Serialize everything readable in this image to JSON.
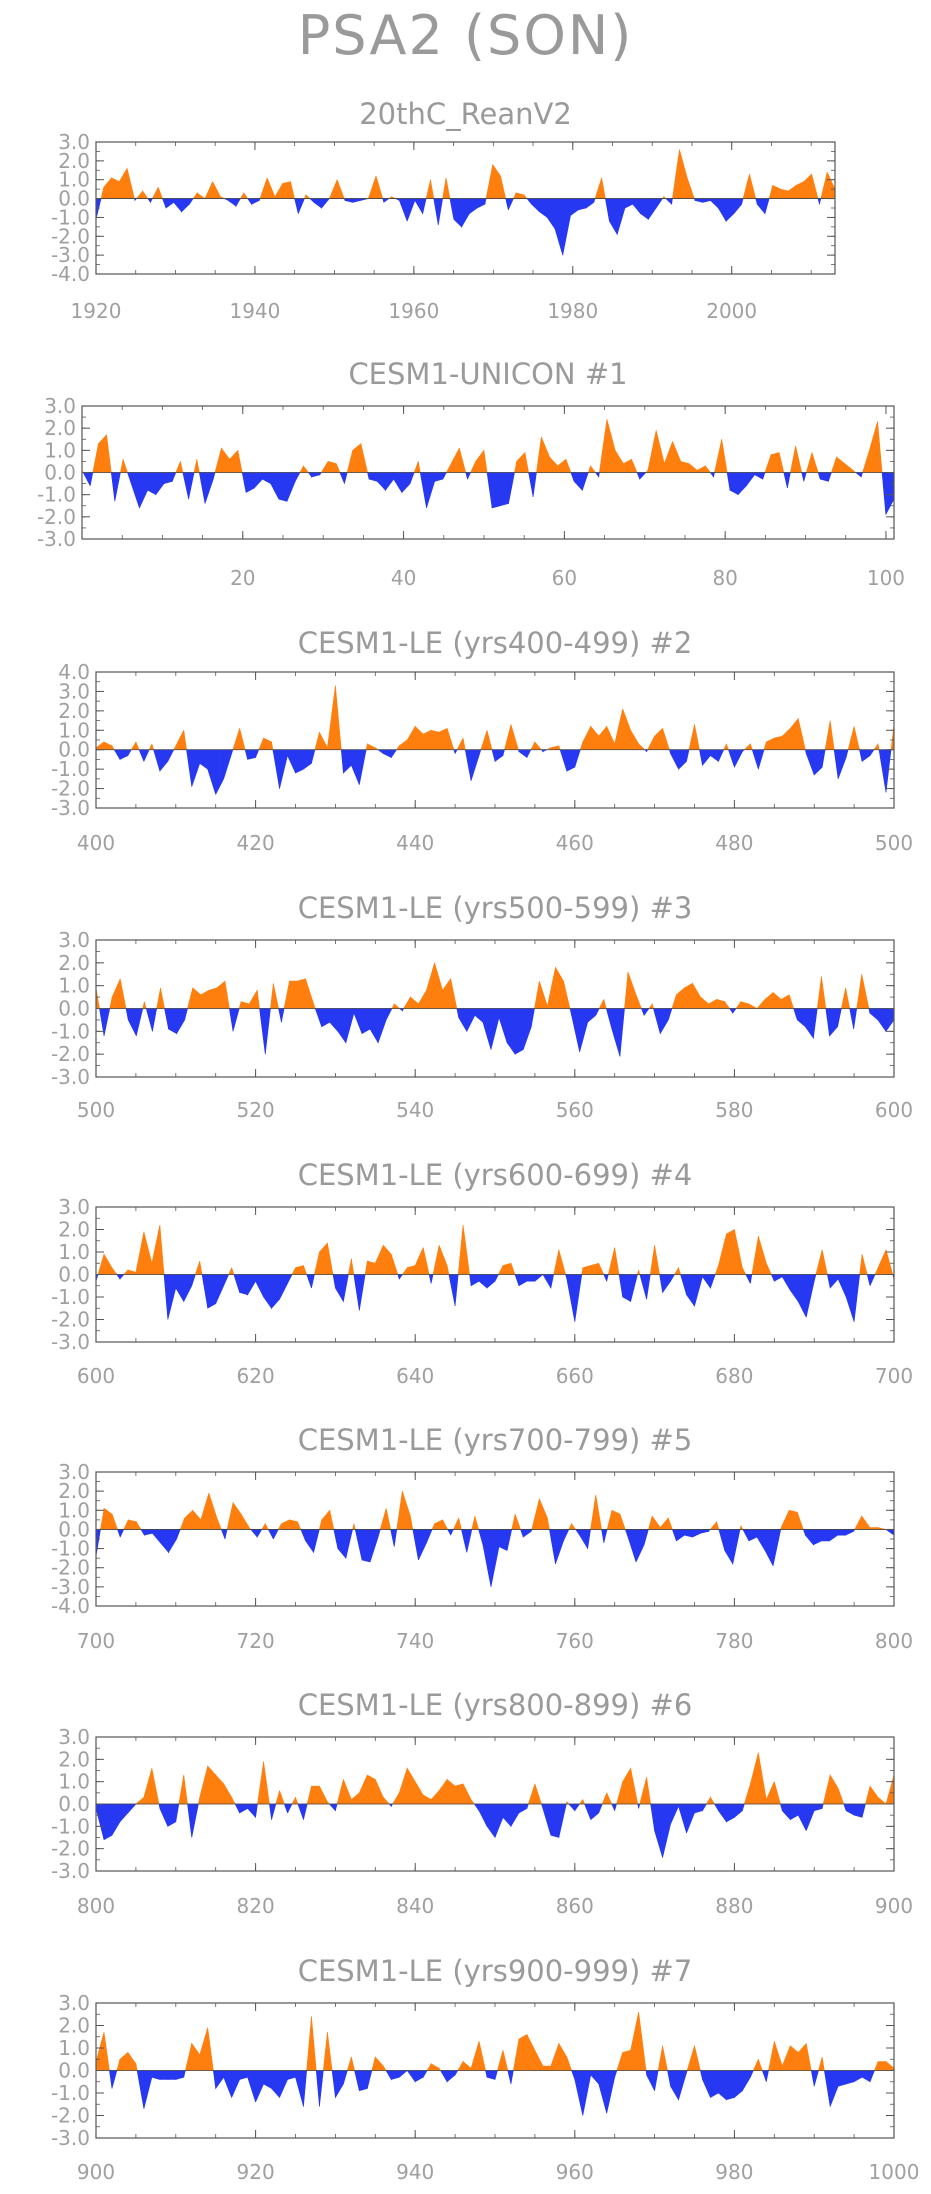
{
  "figure": {
    "title": "PSA2 (SON)"
  },
  "colors": {
    "positive": "#ff7f0e",
    "negative": "#2638f2",
    "axis": "#555555",
    "text": "#9a9a9a"
  },
  "chart_data": [
    {
      "type": "area",
      "title": "20thC_ReanV2",
      "x_range": [
        1920,
        2013
      ],
      "ylim": [
        -4.0,
        3.0
      ],
      "y_ticks": [
        "3.0",
        "2.0",
        "1.0",
        "0.0",
        "-1.0",
        "-2.0",
        "-3.0",
        "-4.0"
      ],
      "x_ticks": [
        "1920",
        "1940",
        "1960",
        "1980",
        "2000"
      ],
      "values": [
        -1.1,
        0.6,
        1.1,
        0.9,
        1.6,
        -0.1,
        0.4,
        -0.2,
        0.6,
        -0.5,
        -0.2,
        -0.7,
        -0.3,
        0.3,
        0.0,
        0.9,
        0.1,
        -0.1,
        -0.4,
        0.3,
        -0.3,
        -0.1,
        1.1,
        0.1,
        0.8,
        0.9,
        -0.8,
        0.2,
        -0.2,
        -0.5,
        0.0,
        1.0,
        -0.1,
        -0.2,
        -0.1,
        0.0,
        1.2,
        -0.2,
        0.1,
        -0.1,
        -1.2,
        -0.1,
        -0.8,
        1.0,
        -1.4,
        1.1,
        -1.1,
        -1.5,
        -0.8,
        -0.5,
        -0.3,
        1.8,
        1.2,
        -0.6,
        0.3,
        0.2,
        -0.3,
        -0.7,
        -1.0,
        -1.6,
        -3.0,
        -0.9,
        -0.6,
        -0.5,
        -0.2,
        1.1,
        -1.2,
        -1.9,
        -0.5,
        -0.3,
        -0.8,
        -1.1,
        -0.5,
        0.1,
        -0.3,
        2.6,
        1.1,
        -0.1,
        -0.2,
        -0.1,
        -0.5,
        -1.2,
        -0.8,
        -0.3,
        1.3,
        -0.3,
        -0.8,
        0.7,
        0.5,
        0.4,
        0.7,
        0.9,
        1.3,
        -0.3,
        1.4,
        0.5
      ]
    },
    {
      "type": "area",
      "title": "CESM1-UNICON          #1",
      "x_range": [
        0,
        101
      ],
      "ylim": [
        -3.0,
        3.0
      ],
      "y_ticks": [
        "3.0",
        "2.0",
        "1.0",
        "0.0",
        "-1.0",
        "-2.0",
        "-3.0"
      ],
      "x_ticks": [
        "20",
        "40",
        "60",
        "80",
        "100"
      ],
      "values": [
        0.1,
        -0.6,
        1.3,
        1.7,
        -1.3,
        0.6,
        -0.5,
        -1.6,
        -0.8,
        -1.0,
        -0.5,
        -0.4,
        0.5,
        -1.2,
        0.6,
        -1.4,
        -0.3,
        1.1,
        0.6,
        1.0,
        -0.9,
        -0.7,
        -0.3,
        -0.5,
        -1.2,
        -1.3,
        -0.4,
        0.3,
        -0.2,
        -0.1,
        0.5,
        0.4,
        -0.5,
        1.0,
        1.3,
        -0.3,
        -0.4,
        -0.8,
        -0.3,
        -0.9,
        -0.5,
        0.5,
        -1.6,
        -0.4,
        -0.3,
        0.4,
        1.1,
        -0.3,
        0.5,
        1.0,
        -1.6,
        -1.5,
        -1.4,
        0.5,
        0.9,
        -1.1,
        1.6,
        0.7,
        0.3,
        0.6,
        -0.4,
        -0.8,
        0.3,
        -0.2,
        2.4,
        1.0,
        0.4,
        0.6,
        -0.3,
        0.1,
        1.9,
        0.4,
        1.4,
        0.5,
        0.4,
        0.1,
        0.3,
        -0.2,
        1.5,
        -0.8,
        -1.0,
        -0.6,
        -0.1,
        -0.3,
        0.8,
        0.9,
        -0.7,
        1.2,
        -0.4,
        0.9,
        -0.3,
        -0.4,
        0.7,
        0.4,
        0.1,
        -0.2,
        1.0,
        2.3,
        -1.9,
        -1.2
      ]
    },
    {
      "type": "area",
      "title": "CESM1-LE (yrs400-499) #2",
      "x_range": [
        400,
        500
      ],
      "ylim": [
        -3.0,
        4.0
      ],
      "y_ticks": [
        "4.0",
        "3.0",
        "2.0",
        "1.0",
        "0.0",
        "-1.0",
        "-2.0",
        "-3.0"
      ],
      "x_ticks": [
        "400",
        "420",
        "440",
        "460",
        "480",
        "500"
      ],
      "values": [
        0.1,
        0.4,
        0.2,
        -0.5,
        -0.3,
        0.4,
        -0.6,
        0.3,
        -1.1,
        -0.6,
        0.2,
        1.0,
        -1.9,
        -0.7,
        -1.0,
        -2.3,
        -1.5,
        -0.2,
        1.1,
        -0.5,
        -0.4,
        0.6,
        0.4,
        -2.0,
        -0.3,
        -1.2,
        -1.0,
        -0.7,
        0.9,
        0.1,
        3.3,
        -1.2,
        -0.8,
        -1.8,
        0.3,
        0.1,
        -0.2,
        -0.4,
        0.2,
        0.5,
        1.2,
        0.8,
        1.0,
        0.9,
        1.1,
        -0.2,
        0.6,
        -1.6,
        -0.3,
        1.0,
        -0.6,
        -0.3,
        1.3,
        -0.1,
        -0.4,
        0.4,
        -0.1,
        0.1,
        0.2,
        -1.1,
        -0.9,
        0.4,
        1.2,
        0.7,
        1.2,
        0.3,
        2.1,
        1.0,
        0.3,
        -0.1,
        0.7,
        1.1,
        -0.2,
        -1.0,
        -0.6,
        1.3,
        -0.8,
        -0.3,
        -0.6,
        0.3,
        -0.9,
        -0.1,
        0.3,
        -1.0,
        0.4,
        0.6,
        0.7,
        1.1,
        1.6,
        -0.2,
        -1.3,
        -0.9,
        1.5,
        -1.5,
        -0.4,
        1.2,
        -0.6,
        -0.3,
        0.3,
        -2.2,
        1.3
      ]
    },
    {
      "type": "area",
      "title": "CESM1-LE (yrs500-599) #3",
      "x_range": [
        500,
        600
      ],
      "ylim": [
        -3.0,
        3.0
      ],
      "y_ticks": [
        "3.0",
        "2.0",
        "1.0",
        "0.0",
        "-1.0",
        "-2.0",
        "-3.0"
      ],
      "x_ticks": [
        "500",
        "520",
        "540",
        "560",
        "580",
        "600"
      ],
      "values": [
        0.9,
        -1.2,
        0.5,
        1.3,
        -0.5,
        -1.2,
        0.3,
        -1.0,
        0.9,
        -0.9,
        -1.1,
        -0.5,
        0.9,
        0.6,
        0.8,
        0.9,
        1.2,
        -1.0,
        0.3,
        0.2,
        0.8,
        -2.0,
        1.1,
        -0.6,
        1.2,
        1.2,
        1.3,
        0.2,
        -0.8,
        -0.6,
        -1.0,
        -1.5,
        -0.2,
        -1.1,
        -0.9,
        -1.5,
        -0.5,
        0.2,
        -0.1,
        0.5,
        0.2,
        0.8,
        2.0,
        0.8,
        1.3,
        -0.4,
        -1.0,
        -0.3,
        -0.6,
        -1.8,
        -0.4,
        -1.5,
        -2.0,
        -1.8,
        -0.8,
        1.2,
        0.1,
        1.8,
        1.2,
        -0.3,
        -1.9,
        -0.6,
        -0.3,
        0.4,
        -0.9,
        -2.1,
        1.6,
        0.6,
        -0.3,
        0.2,
        -1.1,
        -0.5,
        0.6,
        0.9,
        1.1,
        0.5,
        0.2,
        0.4,
        0.3,
        -0.2,
        0.3,
        0.2,
        0.0,
        0.4,
        0.7,
        0.4,
        0.6,
        -0.5,
        -0.8,
        -1.3,
        1.4,
        -1.2,
        -0.8,
        0.9,
        -0.9,
        1.5,
        -0.2,
        -0.5,
        -1.0,
        -0.5
      ]
    },
    {
      "type": "area",
      "title": "CESM1-LE (yrs600-699) #4",
      "x_range": [
        600,
        700
      ],
      "ylim": [
        -3.0,
        3.0
      ],
      "y_ticks": [
        "3.0",
        "2.0",
        "1.0",
        "0.0",
        "-1.0",
        "-2.0",
        "-3.0"
      ],
      "x_ticks": [
        "600",
        "620",
        "640",
        "660",
        "680",
        "700"
      ],
      "values": [
        -0.3,
        0.9,
        0.3,
        -0.2,
        0.2,
        0.1,
        1.9,
        0.5,
        2.2,
        -2.0,
        -0.6,
        -1.2,
        -0.5,
        0.6,
        -1.5,
        -1.3,
        -0.5,
        0.3,
        -0.8,
        -0.9,
        -0.3,
        -1.0,
        -1.5,
        -1.1,
        -0.4,
        0.3,
        0.4,
        -0.6,
        1.0,
        1.4,
        -0.6,
        -1.2,
        0.7,
        -1.6,
        0.6,
        0.5,
        1.3,
        0.9,
        -0.2,
        0.3,
        0.4,
        1.2,
        -0.4,
        1.3,
        0.4,
        -1.4,
        2.2,
        -0.5,
        -0.3,
        -0.6,
        -0.3,
        0.4,
        0.5,
        -0.5,
        -0.3,
        -0.3,
        0.0,
        -0.6,
        1.1,
        -0.2,
        -2.1,
        0.3,
        0.4,
        0.5,
        -0.3,
        1.2,
        -1.0,
        -1.2,
        0.2,
        -1.1,
        1.3,
        -0.8,
        -0.3,
        0.3,
        -0.9,
        -1.4,
        -0.1,
        -0.6,
        0.4,
        1.8,
        2.0,
        0.3,
        -0.4,
        1.7,
        0.5,
        -0.3,
        -0.1,
        -0.7,
        -1.2,
        -1.9,
        -0.3,
        1.1,
        -0.6,
        -0.2,
        -1.0,
        -2.1,
        0.9,
        -0.5,
        0.3,
        1.1,
        -0.2
      ]
    },
    {
      "type": "area",
      "title": "CESM1-LE (yrs700-799) #5",
      "x_range": [
        700,
        800
      ],
      "ylim": [
        -4.0,
        3.0
      ],
      "y_ticks": [
        "3.0",
        "2.0",
        "1.0",
        "0.0",
        "-1.0",
        "-2.0",
        "-3.0",
        "-4.0"
      ],
      "x_ticks": [
        "700",
        "720",
        "740",
        "760",
        "780",
        "800"
      ],
      "values": [
        -1.4,
        1.1,
        0.8,
        -0.4,
        0.5,
        0.4,
        -0.3,
        -0.2,
        -0.7,
        -1.2,
        -0.5,
        0.6,
        1.0,
        0.5,
        1.9,
        0.6,
        -0.5,
        1.4,
        0.8,
        0.1,
        -0.4,
        0.3,
        -0.5,
        0.3,
        0.5,
        0.4,
        -0.6,
        -1.2,
        0.5,
        1.0,
        -1.0,
        -1.5,
        0.3,
        -1.6,
        -1.7,
        -0.4,
        1.1,
        -0.9,
        2.0,
        0.7,
        -1.6,
        -0.7,
        0.3,
        0.5,
        -0.3,
        0.6,
        -1.2,
        0.7,
        -0.8,
        -3.0,
        -0.9,
        -1.1,
        0.8,
        -0.4,
        -0.1,
        1.6,
        0.6,
        -1.8,
        -0.6,
        0.3,
        -0.3,
        -1.0,
        1.8,
        -0.7,
        1.0,
        0.8,
        -0.4,
        -1.7,
        -0.8,
        0.7,
        0.1,
        0.6,
        -0.6,
        -0.3,
        -0.4,
        -0.2,
        -0.1,
        0.4,
        -1.1,
        -1.8,
        0.2,
        -0.6,
        -0.4,
        -1.1,
        -1.9,
        0.1,
        1.0,
        0.9,
        -0.3,
        -0.8,
        -0.6,
        -0.6,
        -0.3,
        -0.3,
        -0.1,
        0.7,
        0.1,
        0.1,
        0.0,
        -0.3
      ]
    },
    {
      "type": "area",
      "title": "CESM1-LE (yrs800-899) #6",
      "x_range": [
        800,
        900
      ],
      "ylim": [
        -3.0,
        3.0
      ],
      "y_ticks": [
        "3.0",
        "2.0",
        "1.0",
        "0.0",
        "-1.0",
        "-2.0",
        "-3.0"
      ],
      "x_ticks": [
        "800",
        "820",
        "840",
        "860",
        "880",
        "900"
      ],
      "values": [
        -0.2,
        -1.6,
        -1.4,
        -0.8,
        -0.4,
        0.0,
        0.3,
        1.6,
        -0.2,
        -1.0,
        -0.8,
        1.3,
        -1.5,
        0.3,
        1.7,
        1.3,
        0.9,
        0.3,
        -0.4,
        -0.2,
        -0.6,
        1.9,
        -0.7,
        0.6,
        -0.4,
        0.3,
        -0.7,
        0.8,
        0.8,
        0.1,
        -0.3,
        1.1,
        0.2,
        0.5,
        1.3,
        1.1,
        0.3,
        -0.1,
        0.5,
        1.6,
        1.0,
        0.4,
        0.2,
        0.6,
        1.1,
        0.8,
        0.9,
        0.2,
        -0.3,
        -1.0,
        -1.5,
        -0.6,
        -1.0,
        -0.4,
        -0.2,
        0.9,
        -0.2,
        -1.4,
        -1.5,
        0.1,
        -0.3,
        0.2,
        -0.7,
        -0.4,
        0.5,
        -0.3,
        1.0,
        1.6,
        -0.2,
        1.2,
        -1.2,
        -2.4,
        -0.9,
        -0.1,
        -1.3,
        -0.4,
        -0.3,
        0.3,
        -0.3,
        -0.8,
        -0.6,
        -0.3,
        0.9,
        2.3,
        0.2,
        1.0,
        -0.3,
        -0.7,
        -0.5,
        -1.2,
        -0.3,
        -0.2,
        1.3,
        0.7,
        -0.3,
        -0.5,
        -0.6,
        0.8,
        0.3,
        0.0,
        1.3
      ]
    },
    {
      "type": "area",
      "title": "CESM1-LE (yrs900-999) #7",
      "x_range": [
        900,
        1000
      ],
      "ylim": [
        -3.0,
        3.0
      ],
      "y_ticks": [
        "3.0",
        "2.0",
        "1.0",
        "0.0",
        "-1.0",
        "-2.0",
        "-3.0"
      ],
      "x_ticks": [
        "900",
        "920",
        "940",
        "960",
        "980",
        "1000"
      ],
      "values": [
        0.4,
        1.7,
        -0.8,
        0.5,
        0.8,
        0.3,
        -1.7,
        -0.3,
        -0.4,
        -0.4,
        -0.4,
        -0.3,
        1.2,
        0.7,
        1.9,
        -0.8,
        -0.3,
        -1.2,
        -0.4,
        -0.3,
        -1.4,
        -0.6,
        -0.8,
        -1.2,
        -0.4,
        -0.3,
        -1.6,
        2.4,
        -1.6,
        1.7,
        -1.2,
        -0.6,
        0.6,
        -0.9,
        -0.8,
        0.6,
        0.2,
        -0.4,
        -0.3,
        0.0,
        -0.5,
        -0.3,
        0.3,
        0.1,
        -0.5,
        -0.2,
        0.4,
        0.1,
        1.3,
        -0.3,
        -0.4,
        0.9,
        -0.6,
        1.4,
        1.6,
        0.9,
        0.2,
        0.2,
        1.2,
        0.6,
        -0.4,
        -2.0,
        -0.2,
        -0.6,
        -1.9,
        -0.3,
        0.8,
        0.9,
        2.6,
        -0.2,
        -0.9,
        1.1,
        -0.7,
        -1.3,
        -0.1,
        1.1,
        -0.4,
        -1.2,
        -1.0,
        -1.3,
        -1.2,
        -0.9,
        -0.3,
        0.5,
        -0.5,
        1.3,
        0.2,
        1.1,
        0.8,
        1.2,
        -0.7,
        0.6,
        -1.6,
        -0.7,
        -0.6,
        -0.5,
        -0.3,
        -0.5,
        0.4,
        0.4,
        0.1
      ]
    }
  ]
}
